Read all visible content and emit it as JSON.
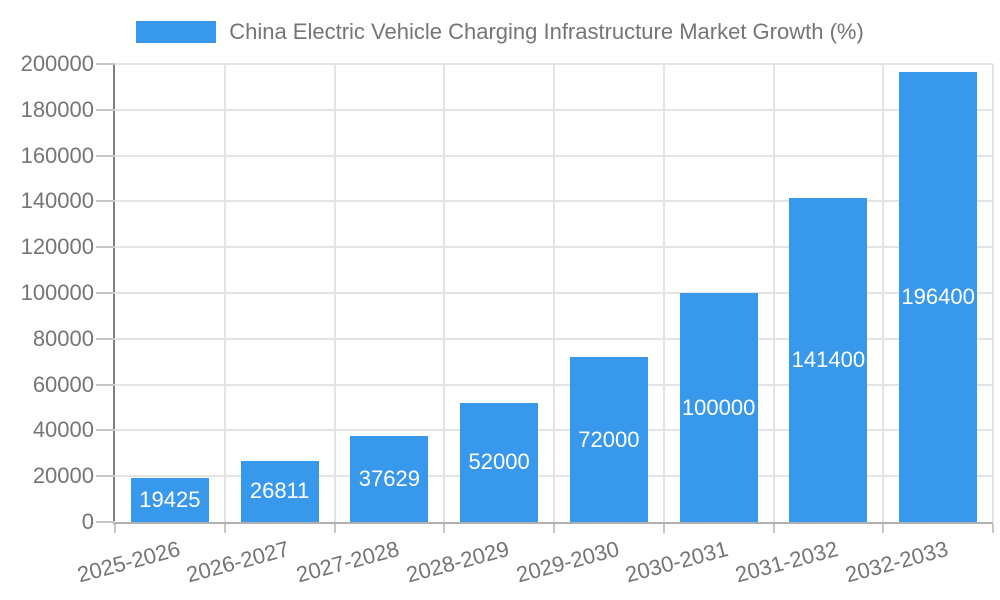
{
  "chart_data": {
    "type": "bar",
    "title": "China Electric Vehicle Charging Infrastructure Market Growth (%)",
    "categories": [
      "2025-2026",
      "2026-2027",
      "2027-2028",
      "2028-2029",
      "2029-2030",
      "2030-2031",
      "2031-2032",
      "2032-2033"
    ],
    "values": [
      19425,
      26811,
      37629,
      52000,
      72000,
      100000,
      141400,
      196400
    ],
    "xlabel": "",
    "ylabel": "",
    "ylim": [
      0,
      200000
    ],
    "ytick_step": 20000,
    "yticks": [
      0,
      20000,
      40000,
      60000,
      80000,
      100000,
      120000,
      140000,
      160000,
      180000,
      200000
    ],
    "grid": true,
    "legend_position": "top",
    "value_label_position": "center-of-bar",
    "colors": {
      "bar": "#3898ec",
      "value_label": "#ffffff",
      "text": "#757575",
      "grid": "#e4e4e4",
      "y_axis": "#7f7f7f",
      "x_axis": "#b0b0b0",
      "tick": "#c6c6c6",
      "background": "#ffffff"
    }
  }
}
